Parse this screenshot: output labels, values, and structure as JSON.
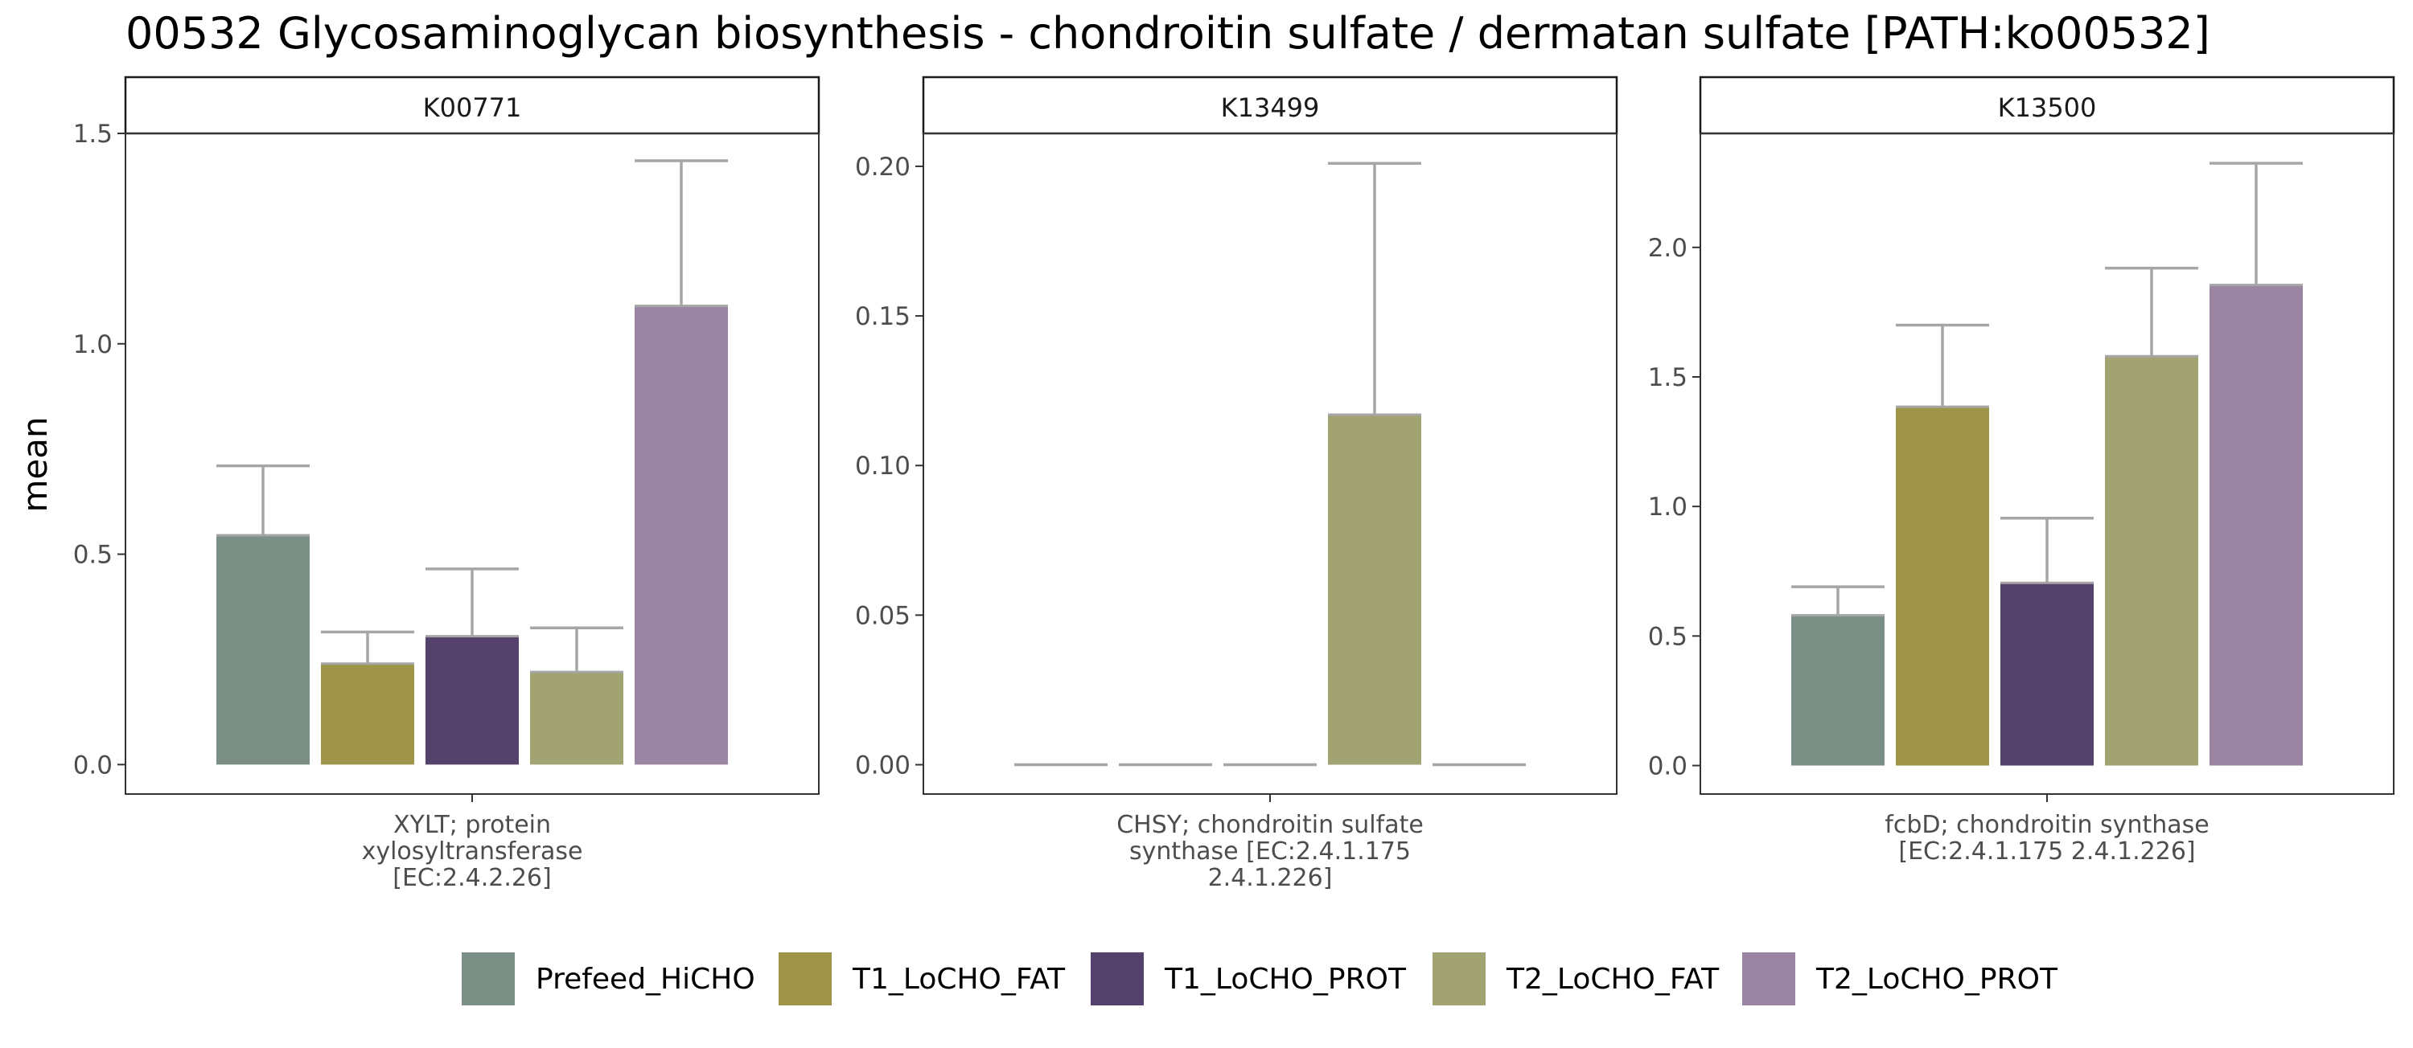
{
  "chart_data": {
    "type": "bar",
    "title": "00532 Glycosaminoglycan biosynthesis - chondroitin sulfate / dermatan sulfate [PATH:ko00532]",
    "ylabel": "mean",
    "legend": {
      "position": "bottom",
      "entries": [
        {
          "name": "Prefeed_HiCHO",
          "color": "#7B8F87"
        },
        {
          "name": "T1_LoCHO_FAT",
          "color": "#9E9548"
        },
        {
          "name": "T1_LoCHO_PROT",
          "color": "#54416C"
        },
        {
          "name": "T2_LoCHO_FAT",
          "color": "#A2A373"
        },
        {
          "name": "T2_LoCHO_PROT",
          "color": "#9A86A3"
        }
      ]
    },
    "panels": [
      {
        "strip": "K00771",
        "xlabel": [
          "XYLT; protein",
          "xylosyltransferase",
          "[EC:2.4.2.26]"
        ],
        "ylim": [
          -0.07,
          1.5
        ],
        "yticks": [
          0.0,
          0.5,
          1.0,
          1.5
        ],
        "ytick_labels": [
          "0.0",
          "0.5",
          "1.0",
          "1.5"
        ],
        "series": [
          {
            "name": "Prefeed_HiCHO",
            "value": 0.545,
            "error_upper": 0.71
          },
          {
            "name": "T1_LoCHO_FAT",
            "value": 0.24,
            "error_upper": 0.315
          },
          {
            "name": "T1_LoCHO_PROT",
            "value": 0.305,
            "error_upper": 0.465
          },
          {
            "name": "T2_LoCHO_FAT",
            "value": 0.22,
            "error_upper": 0.325
          },
          {
            "name": "T2_LoCHO_PROT",
            "value": 1.09,
            "error_upper": 1.435
          }
        ]
      },
      {
        "strip": "K13499",
        "xlabel": [
          "CHSY; chondroitin sulfate",
          "synthase [EC:2.4.1.175",
          "2.4.1.226]"
        ],
        "ylim": [
          -0.0098,
          0.211
        ],
        "yticks": [
          0.0,
          0.05,
          0.1,
          0.15,
          0.2
        ],
        "ytick_labels": [
          "0.00",
          "0.05",
          "0.10",
          "0.15",
          "0.20"
        ],
        "series": [
          {
            "name": "Prefeed_HiCHO",
            "value": 0.0,
            "error_upper": 0.0
          },
          {
            "name": "T1_LoCHO_FAT",
            "value": 0.0,
            "error_upper": 0.0
          },
          {
            "name": "T1_LoCHO_PROT",
            "value": 0.0,
            "error_upper": 0.0
          },
          {
            "name": "T2_LoCHO_FAT",
            "value": 0.117,
            "error_upper": 0.201
          },
          {
            "name": "T2_LoCHO_PROT",
            "value": 0.0,
            "error_upper": 0.0
          }
        ]
      },
      {
        "strip": "K13500",
        "xlabel": [
          "fcbD; chondroitin synthase",
          "[EC:2.4.1.175 2.4.1.226]"
        ],
        "ylim": [
          -0.11,
          2.44
        ],
        "yticks": [
          0.0,
          0.5,
          1.0,
          1.5,
          2.0
        ],
        "ytick_labels": [
          "0.0",
          "0.5",
          "1.0",
          "1.5",
          "2.0"
        ],
        "series": [
          {
            "name": "Prefeed_HiCHO",
            "value": 0.58,
            "error_upper": 0.69
          },
          {
            "name": "T1_LoCHO_FAT",
            "value": 1.385,
            "error_upper": 1.7
          },
          {
            "name": "T1_LoCHO_PROT",
            "value": 0.705,
            "error_upper": 0.955
          },
          {
            "name": "T2_LoCHO_FAT",
            "value": 1.58,
            "error_upper": 1.92
          },
          {
            "name": "T2_LoCHO_PROT",
            "value": 1.855,
            "error_upper": 2.325
          }
        ]
      }
    ]
  }
}
